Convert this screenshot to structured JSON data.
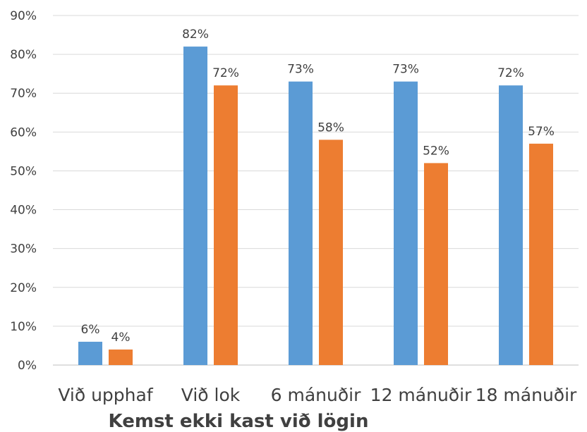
{
  "chart_data": {
    "type": "bar",
    "title": "",
    "xlabel": "Kemst ekki kast við lögin",
    "ylabel": "",
    "categories": [
      "Við upphaf",
      "Við lok",
      "6 mánuðir",
      "12 mánuðir",
      "18 mánuðir"
    ],
    "series": [
      {
        "color": "#5b9bd5",
        "values": [
          6,
          82,
          73,
          73,
          72
        ]
      },
      {
        "color": "#ed7d31",
        "values": [
          4,
          72,
          58,
          52,
          57
        ]
      }
    ],
    "ylim": [
      0,
      90
    ],
    "y_ticks": [
      "0%",
      "10%",
      "20%",
      "30%",
      "40%",
      "50%",
      "60%",
      "70%",
      "80%",
      "90%"
    ],
    "value_suffix": "%",
    "grid": true,
    "legend": "none"
  }
}
